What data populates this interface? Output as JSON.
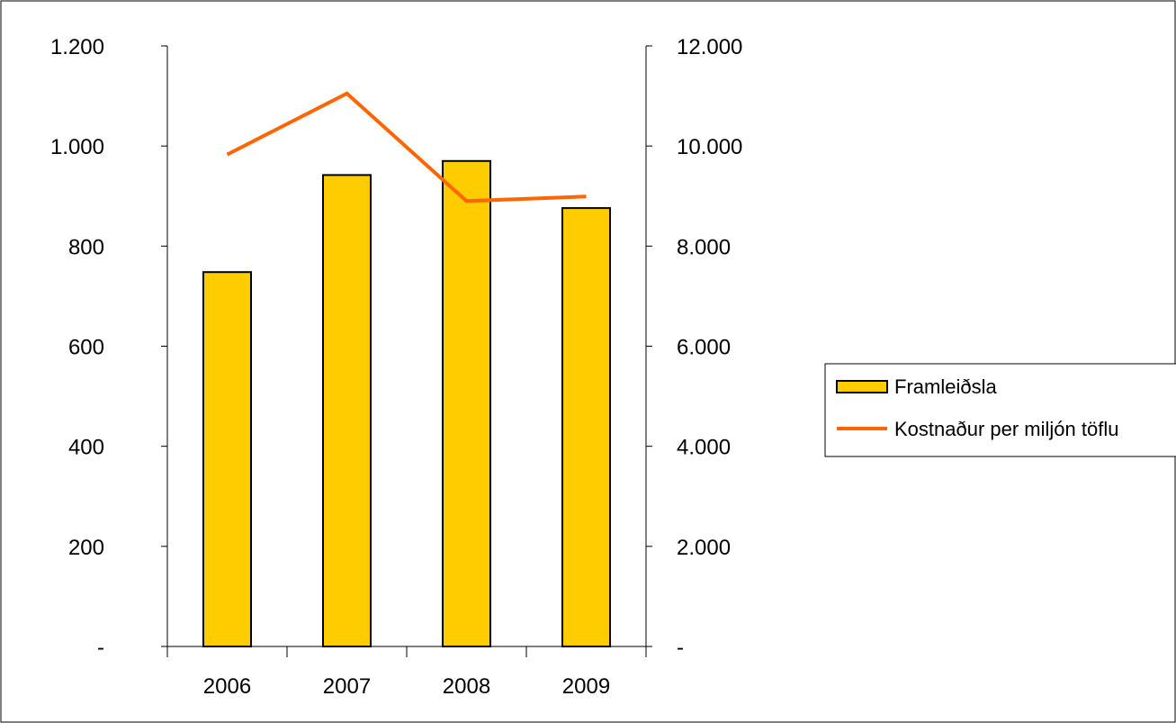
{
  "chart_data": {
    "type": "bar",
    "categories": [
      "2006",
      "2007",
      "2008",
      "2009"
    ],
    "series": [
      {
        "name": "Framleiðsla",
        "type": "bar",
        "axis": "left",
        "color": "#FFCC00",
        "values": [
          748,
          942,
          970,
          876
        ]
      },
      {
        "name": "Kostnaður per miljón töflu",
        "type": "line",
        "axis": "right",
        "color": "#FF6600",
        "values": [
          9830,
          11050,
          8900,
          8990
        ]
      }
    ],
    "y_left": {
      "ylim": [
        0,
        1200
      ],
      "ticks": [
        0,
        200,
        400,
        600,
        800,
        1000,
        1200
      ],
      "tick_labels": [
        "-",
        "200",
        "400",
        "600",
        "800",
        "1.000",
        "1.200"
      ]
    },
    "y_right": {
      "ylim": [
        0,
        12000
      ],
      "ticks": [
        0,
        2000,
        4000,
        6000,
        8000,
        10000,
        12000
      ],
      "tick_labels": [
        "-",
        "2.000",
        "4.000",
        "6.000",
        "8.000",
        "10.000",
        "12.000"
      ]
    },
    "grid": false,
    "legend_position": "right"
  }
}
